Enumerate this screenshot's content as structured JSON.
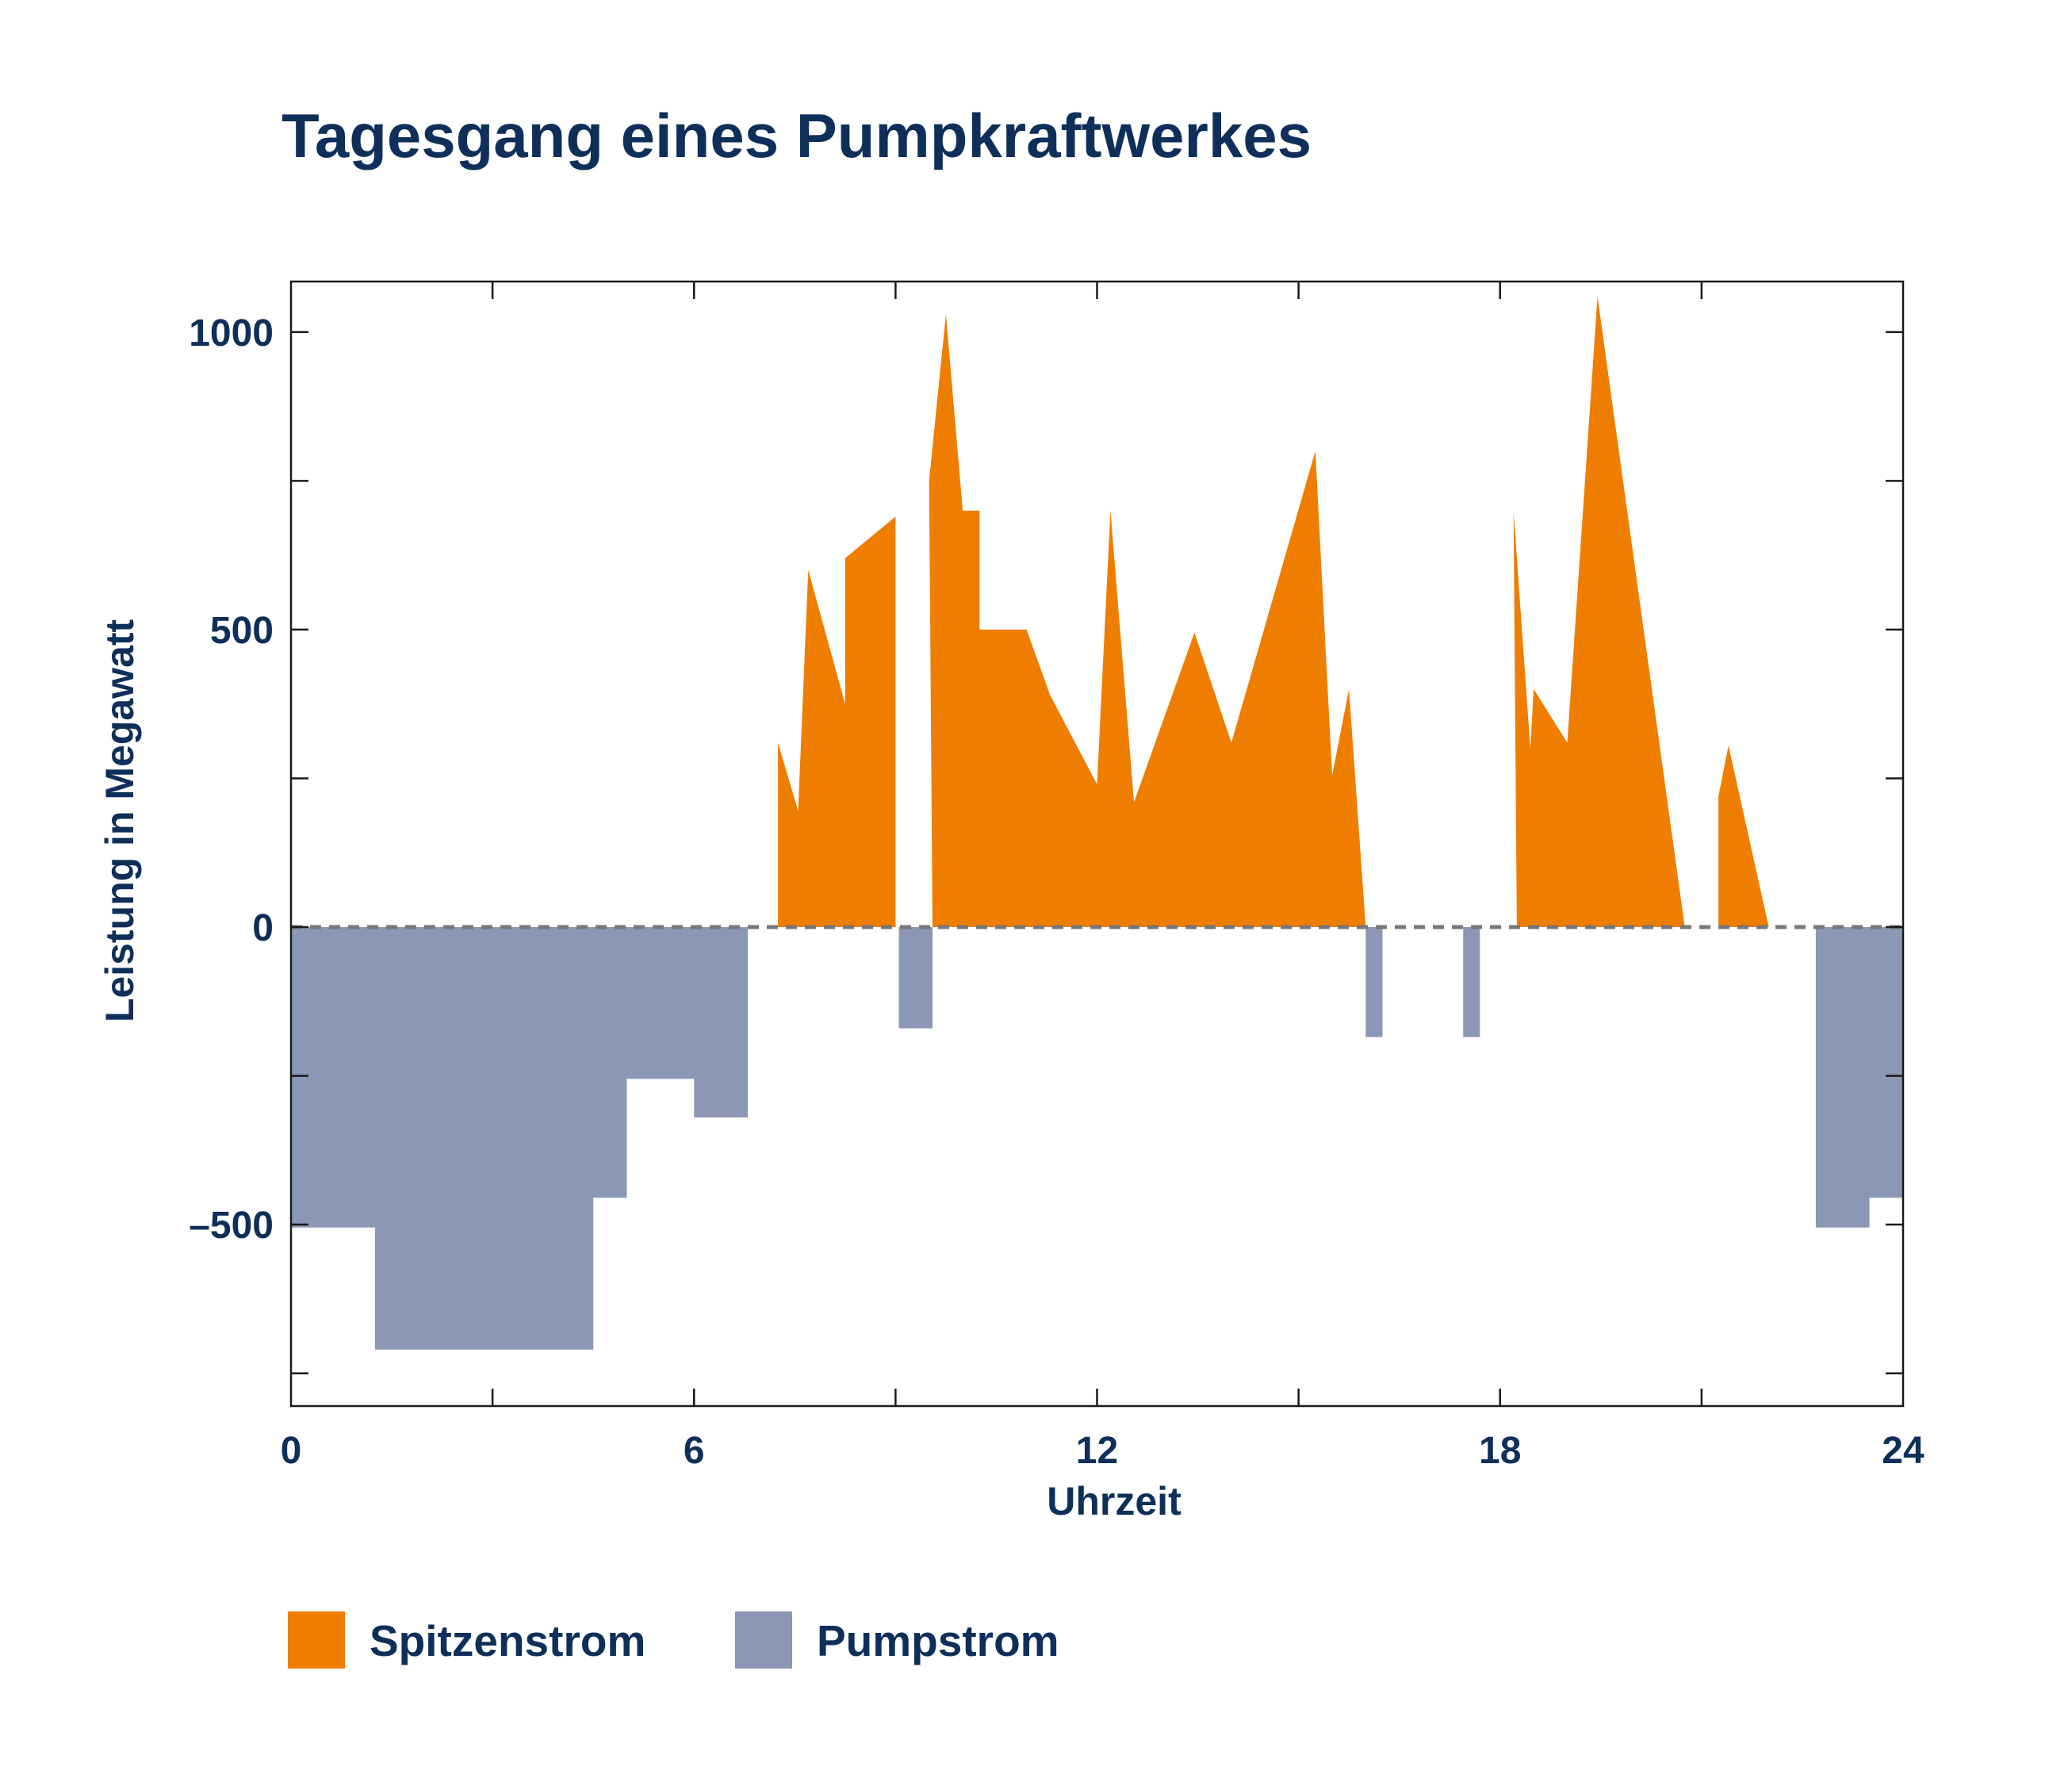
{
  "colors": {
    "title": "#0e2f5a",
    "peak": "#ef7d00",
    "pump": "#8a97b5",
    "axis": "#1a1a1a",
    "zero_line": "#777777"
  },
  "chart_data": {
    "type": "area",
    "title": "Tagesgang eines Pumpkraftwerkes",
    "xlabel": "Uhrzeit",
    "ylabel": "Leistung in Megawatt",
    "xlim": [
      0,
      24
    ],
    "ylim": [
      -805,
      1085
    ],
    "x_ticks": [
      {
        "value": 0,
        "label": "0"
      },
      {
        "value": 6,
        "label": "6"
      },
      {
        "value": 12,
        "label": "12"
      },
      {
        "value": 18,
        "label": "18"
      },
      {
        "value": 24,
        "label": "24"
      }
    ],
    "y_ticks": [
      {
        "value": 1000,
        "label": "1000"
      },
      {
        "value": 500,
        "label": "500"
      },
      {
        "value": 0,
        "label": "0"
      },
      {
        "value": -500,
        "label": "–500"
      }
    ],
    "grid": false,
    "zero_line_dashed": true,
    "legend_position": "bottom-left",
    "series": [
      {
        "name": "Spitzenstrom",
        "color_key": "peak",
        "segments": [
          [
            [
              7.25,
              0
            ],
            [
              7.25,
              310
            ],
            [
              7.55,
              195
            ],
            [
              7.7,
              600
            ],
            [
              8.25,
              375
            ],
            [
              8.25,
              620
            ],
            [
              9.0,
              690
            ],
            [
              9.0,
              0
            ]
          ],
          [
            [
              9.55,
              0
            ],
            [
              9.5,
              750
            ],
            [
              9.75,
              1030
            ],
            [
              10.0,
              700
            ],
            [
              10.25,
              700
            ],
            [
              10.25,
              500
            ],
            [
              10.95,
              500
            ],
            [
              11.3,
              390
            ],
            [
              12.0,
              240
            ],
            [
              12.2,
              700
            ],
            [
              12.55,
              210
            ],
            [
              13.45,
              495
            ],
            [
              14.0,
              310
            ],
            [
              15.25,
              800
            ],
            [
              15.5,
              255
            ],
            [
              15.75,
              400
            ],
            [
              16.0,
              0
            ]
          ],
          [
            [
              18.25,
              0
            ],
            [
              18.2,
              700
            ],
            [
              18.45,
              300
            ],
            [
              18.5,
              400
            ],
            [
              19.0,
              310
            ],
            [
              19.45,
              1060
            ],
            [
              20.75,
              0
            ]
          ],
          [
            [
              21.25,
              0
            ],
            [
              21.25,
              220
            ],
            [
              21.4,
              305
            ],
            [
              22.0,
              0
            ]
          ]
        ]
      },
      {
        "name": "Pumpstrom",
        "color_key": "pump",
        "segments": [
          [
            [
              0,
              0
            ],
            [
              0,
              -505
            ],
            [
              1.25,
              -505
            ],
            [
              1.25,
              -710
            ],
            [
              4.5,
              -710
            ],
            [
              4.5,
              -455
            ],
            [
              5.0,
              -455
            ],
            [
              5.0,
              -255
            ],
            [
              6.0,
              -255
            ],
            [
              6.0,
              -320
            ],
            [
              6.8,
              -320
            ],
            [
              6.8,
              0
            ]
          ],
          [
            [
              9.05,
              0
            ],
            [
              9.05,
              -170
            ],
            [
              9.55,
              -170
            ],
            [
              9.55,
              0
            ]
          ],
          [
            [
              16.0,
              0
            ],
            [
              16.0,
              -185
            ],
            [
              16.25,
              -185
            ],
            [
              16.25,
              0
            ]
          ],
          [
            [
              17.45,
              0
            ],
            [
              17.45,
              -185
            ],
            [
              17.7,
              -185
            ],
            [
              17.7,
              0
            ]
          ],
          [
            [
              22.7,
              0
            ],
            [
              22.7,
              -505
            ],
            [
              23.5,
              -505
            ],
            [
              23.5,
              -455
            ],
            [
              24.0,
              -455
            ],
            [
              24.0,
              0
            ]
          ]
        ]
      }
    ]
  }
}
